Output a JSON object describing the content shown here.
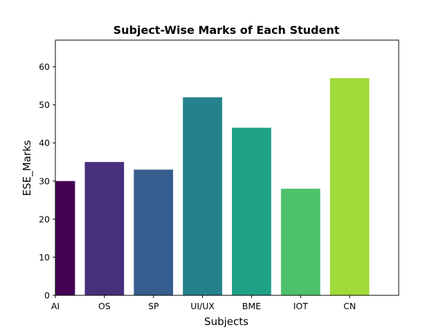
{
  "chart_data": {
    "type": "bar",
    "title": "Subject-Wise Marks of Each Student",
    "xlabel": "Subjects",
    "ylabel": "ESE_Marks",
    "categories": [
      "AI",
      "OS",
      "SP",
      "UI/UX",
      "BME",
      "IOT",
      "CN"
    ],
    "values": [
      30,
      35,
      33,
      52,
      44,
      28,
      57
    ],
    "colors": [
      "#440154",
      "#482f7c",
      "#355d8d",
      "#26818e",
      "#1fa187",
      "#4cc26c",
      "#a0da39"
    ],
    "ylim": [
      0,
      67
    ],
    "yticks": [
      0,
      10,
      20,
      30,
      40,
      50,
      60
    ],
    "xlim": [
      0,
      7
    ],
    "grid": false
  }
}
